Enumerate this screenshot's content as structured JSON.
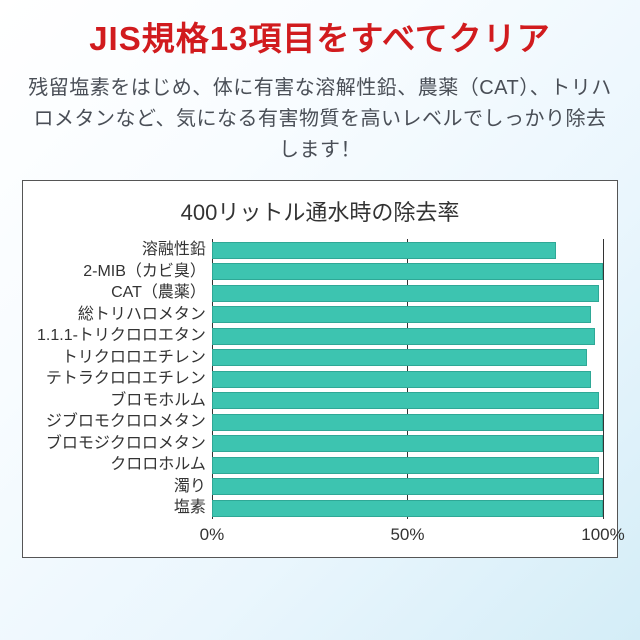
{
  "headline": {
    "text": "JIS規格13項目をすべてクリア",
    "color": "#d11b1e",
    "fontsize": 33
  },
  "subhead": {
    "text": "残留塩素をはじめ、体に有害な溶解性鉛、農薬（CAT）、トリハロメタンなど、気になる有害物質を高いレベルでしっかり除去します！",
    "color": "#4a4f57",
    "fontsize": 20
  },
  "chart": {
    "type": "bar-horizontal",
    "title": "400リットル通水時の除去率",
    "title_color": "#333333",
    "title_fontsize": 22,
    "border_color": "#555555",
    "background_color": "#ffffff",
    "bar_color": "#3dc4b0",
    "bar_border_color": "#2fa896",
    "grid_color": "#333333",
    "label_color": "#333333",
    "label_fontsize": 16,
    "axis_label_fontsize": 17,
    "xlim": [
      0,
      100
    ],
    "xticks": [
      0,
      50,
      100
    ],
    "xtick_labels": [
      "0%",
      "50%",
      "100%"
    ],
    "categories": [
      "溶融性鉛",
      "2-MIB（カビ臭）",
      "CAT（農薬）",
      "総トリハロメタン",
      "1.1.1-トリクロロエタン",
      "トリクロロエチレン",
      "テトラクロロエチレン",
      "ブロモホルム",
      "ジブロモクロロメタン",
      "ブロモジクロロメタン",
      "クロロホルム",
      "濁り",
      "塩素"
    ],
    "values": [
      88,
      100,
      99,
      97,
      98,
      96,
      97,
      99,
      100,
      100,
      99,
      100,
      100
    ]
  }
}
